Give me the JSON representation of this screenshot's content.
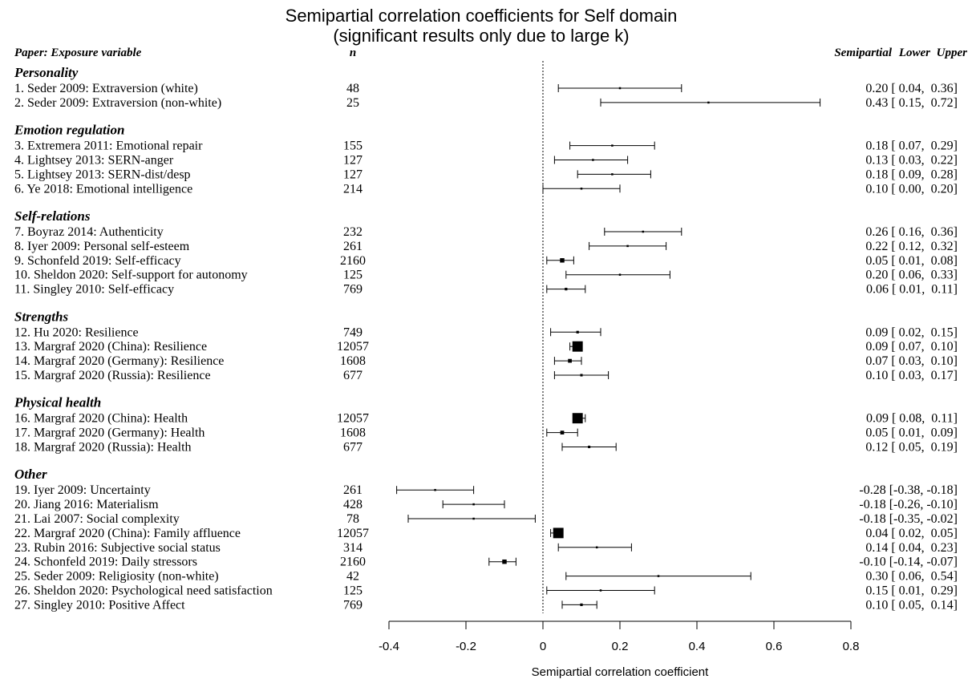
{
  "chart_data": {
    "type": "forest",
    "title_line1": "Semipartial correlation coefficients for Self domain",
    "title_line2": "(significant results only due to large k)",
    "headers": {
      "study": "Paper: Exposure variable",
      "n": "n",
      "estimate": "Semipartial",
      "lower": "Lower",
      "upper": "Upper"
    },
    "xlabel": "Semipartial correlation coefficient",
    "xlim": [
      -0.4,
      0.8
    ],
    "xticks": [
      -0.4,
      -0.2,
      0,
      0.2,
      0.4,
      0.6,
      0.8
    ],
    "xtick_labels": [
      "-0.4",
      "-0.2",
      "0",
      "0.2",
      "0.4",
      "0.6",
      "0.8"
    ],
    "reference_line": 0,
    "groups": [
      {
        "name": "Personality",
        "studies": [
          {
            "label": "1. Seder 2009: Extraversion (white)",
            "n": "48",
            "est": 0.2,
            "lo": 0.04,
            "hi": 0.36,
            "ci_text": "0.20 [ 0.04,  0.36]"
          },
          {
            "label": "2. Seder 2009: Extraversion (non-white)",
            "n": "25",
            "est": 0.43,
            "lo": 0.15,
            "hi": 0.72,
            "ci_text": "0.43 [ 0.15,  0.72]"
          }
        ]
      },
      {
        "name": "Emotion regulation",
        "studies": [
          {
            "label": "3. Extremera 2011: Emotional repair",
            "n": "155",
            "est": 0.18,
            "lo": 0.07,
            "hi": 0.29,
            "ci_text": "0.18 [ 0.07,  0.29]"
          },
          {
            "label": "4. Lightsey 2013: SERN-anger",
            "n": "127",
            "est": 0.13,
            "lo": 0.03,
            "hi": 0.22,
            "ci_text": "0.13 [ 0.03,  0.22]"
          },
          {
            "label": "5. Lightsey 2013: SERN-dist/desp",
            "n": "127",
            "est": 0.18,
            "lo": 0.09,
            "hi": 0.28,
            "ci_text": "0.18 [ 0.09,  0.28]"
          },
          {
            "label": "6. Ye 2018: Emotional intelligence",
            "n": "214",
            "est": 0.1,
            "lo": 0.0,
            "hi": 0.2,
            "ci_text": "0.10 [ 0.00,  0.20]"
          }
        ]
      },
      {
        "name": "Self-relations",
        "studies": [
          {
            "label": "7. Boyraz 2014: Authenticity",
            "n": "232",
            "est": 0.26,
            "lo": 0.16,
            "hi": 0.36,
            "ci_text": "0.26 [ 0.16,  0.36]"
          },
          {
            "label": "8. Iyer 2009: Personal self-esteem",
            "n": "261",
            "est": 0.22,
            "lo": 0.12,
            "hi": 0.32,
            "ci_text": "0.22 [ 0.12,  0.32]"
          },
          {
            "label": "9. Schonfeld 2019: Self-efficacy",
            "n": "2160",
            "est": 0.05,
            "lo": 0.01,
            "hi": 0.08,
            "ci_text": "0.05 [ 0.01,  0.08]"
          },
          {
            "label": "10. Sheldon 2020: Self-support for autonomy",
            "n": "125",
            "est": 0.2,
            "lo": 0.06,
            "hi": 0.33,
            "ci_text": "0.20 [ 0.06,  0.33]"
          },
          {
            "label": "11. Singley 2010: Self-efficacy",
            "n": "769",
            "est": 0.06,
            "lo": 0.01,
            "hi": 0.11,
            "ci_text": "0.06 [ 0.01,  0.11]"
          }
        ]
      },
      {
        "name": "Strengths",
        "studies": [
          {
            "label": "12. Hu 2020: Resilience",
            "n": "749",
            "est": 0.09,
            "lo": 0.02,
            "hi": 0.15,
            "ci_text": "0.09 [ 0.02,  0.15]"
          },
          {
            "label": "13. Margraf 2020 (China): Resilience",
            "n": "12057",
            "est": 0.09,
            "lo": 0.07,
            "hi": 0.1,
            "ci_text": "0.09 [ 0.07,  0.10]"
          },
          {
            "label": "14. Margraf 2020 (Germany): Resilience",
            "n": "1608",
            "est": 0.07,
            "lo": 0.03,
            "hi": 0.1,
            "ci_text": "0.07 [ 0.03,  0.10]"
          },
          {
            "label": "15. Margraf 2020 (Russia): Resilience",
            "n": "677",
            "est": 0.1,
            "lo": 0.03,
            "hi": 0.17,
            "ci_text": "0.10 [ 0.03,  0.17]"
          }
        ]
      },
      {
        "name": "Physical health",
        "studies": [
          {
            "label": "16. Margraf 2020 (China): Health",
            "n": "12057",
            "est": 0.09,
            "lo": 0.08,
            "hi": 0.11,
            "ci_text": "0.09 [ 0.08,  0.11]"
          },
          {
            "label": "17. Margraf 2020 (Germany): Health",
            "n": "1608",
            "est": 0.05,
            "lo": 0.01,
            "hi": 0.09,
            "ci_text": "0.05 [ 0.01,  0.09]"
          },
          {
            "label": "18. Margraf 2020 (Russia): Health",
            "n": "677",
            "est": 0.12,
            "lo": 0.05,
            "hi": 0.19,
            "ci_text": "0.12 [ 0.05,  0.19]"
          }
        ]
      },
      {
        "name": "Other",
        "studies": [
          {
            "label": "19. Iyer 2009: Uncertainty",
            "n": "261",
            "est": -0.28,
            "lo": -0.38,
            "hi": -0.18,
            "ci_text": "-0.28 [-0.38, -0.18]"
          },
          {
            "label": "20. Jiang 2016: Materialism",
            "n": "428",
            "est": -0.18,
            "lo": -0.26,
            "hi": -0.1,
            "ci_text": "-0.18 [-0.26, -0.10]"
          },
          {
            "label": "21. Lai 2007: Social complexity",
            "n": "78",
            "est": -0.18,
            "lo": -0.35,
            "hi": -0.02,
            "ci_text": "-0.18 [-0.35, -0.02]"
          },
          {
            "label": "22. Margraf 2020 (China): Family affluence",
            "n": "12057",
            "est": 0.04,
            "lo": 0.02,
            "hi": 0.05,
            "ci_text": "0.04 [ 0.02,  0.05]"
          },
          {
            "label": "23. Rubin 2016: Subjective social status",
            "n": "314",
            "est": 0.14,
            "lo": 0.04,
            "hi": 0.23,
            "ci_text": "0.14 [ 0.04,  0.23]"
          },
          {
            "label": "24. Schonfeld 2019: Daily stressors",
            "n": "2160",
            "est": -0.1,
            "lo": -0.14,
            "hi": -0.07,
            "ci_text": "-0.10 [-0.14, -0.07]"
          },
          {
            "label": "25. Seder 2009: Religiosity (non-white)",
            "n": "42",
            "est": 0.3,
            "lo": 0.06,
            "hi": 0.54,
            "ci_text": "0.30 [ 0.06,  0.54]"
          },
          {
            "label": "26. Sheldon 2020: Psychological need satisfaction",
            "n": "125",
            "est": 0.15,
            "lo": 0.01,
            "hi": 0.29,
            "ci_text": "0.15 [ 0.01,  0.29]"
          },
          {
            "label": "27. Singley 2010: Positive Affect",
            "n": "769",
            "est": 0.1,
            "lo": 0.05,
            "hi": 0.14,
            "ci_text": "0.10 [ 0.05,  0.14]"
          }
        ]
      }
    ]
  }
}
